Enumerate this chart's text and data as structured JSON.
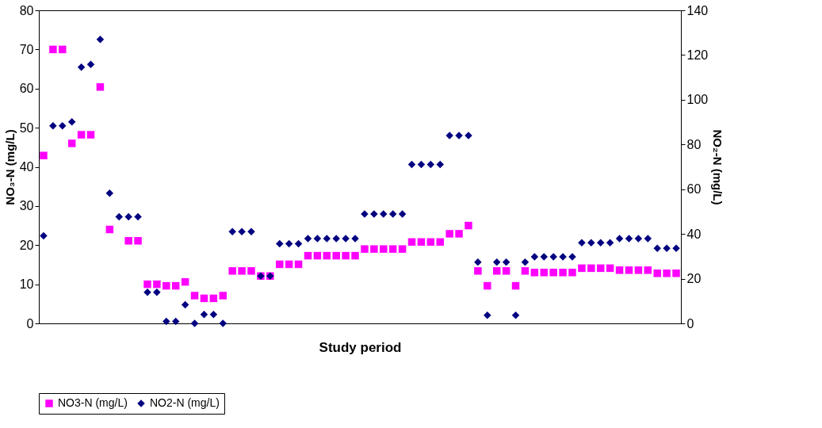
{
  "chart_data": {
    "type": "scatter",
    "xlabel": "Study period",
    "ylabel": "NO₃-N (mg/L)",
    "y2label": "NO₂-N (mg/L)",
    "categories": [
      null,
      null,
      null,
      null,
      null,
      null,
      null,
      null,
      null,
      null,
      null,
      null,
      null,
      null,
      null,
      null,
      null,
      null,
      null,
      null,
      null,
      null,
      null,
      null,
      null,
      null,
      null,
      null,
      null,
      null,
      null,
      null,
      null,
      null,
      null,
      null,
      null,
      null,
      null,
      null,
      null,
      null,
      null,
      null,
      null,
      null,
      null,
      null,
      null,
      null,
      null,
      null,
      null,
      null,
      null,
      null,
      null,
      null,
      null,
      null,
      null,
      null,
      null,
      null,
      null,
      null,
      null,
      null
    ],
    "ylim": [
      0,
      80
    ],
    "yticks": [
      0,
      10,
      20,
      30,
      40,
      50,
      60,
      70,
      80
    ],
    "y2lim": [
      0,
      140
    ],
    "y2ticks": [
      0,
      20,
      40,
      60,
      80,
      100,
      120,
      140
    ],
    "grid": false,
    "legend": "bottom",
    "series": [
      {
        "name": "NO3-N (mg/L)",
        "color": "#ff00ff",
        "marker": "square",
        "values": [
          42.9,
          70,
          70,
          46,
          48.2,
          48.2,
          60.4,
          24,
          null,
          21.1,
          21.1,
          10,
          10,
          9.6,
          9.6,
          10.6,
          7.1,
          6.4,
          6.4,
          7.1,
          13.4,
          13.4,
          13.4,
          12.1,
          12.1,
          15.1,
          15.1,
          15.1,
          17.3,
          17.3,
          17.3,
          17.3,
          17.3,
          17.3,
          19,
          19,
          19,
          19,
          19,
          20.8,
          20.8,
          20.8,
          20.8,
          22.9,
          22.9,
          25,
          13.4,
          9.6,
          13.4,
          13.4,
          9.6,
          13.4,
          13,
          13,
          13,
          13,
          13,
          14.1,
          14.1,
          14.1,
          14.1,
          13.6,
          13.6,
          13.6,
          13.6,
          12.8,
          12.8,
          12.8
        ]
      },
      {
        "name": "NO2-N (mg/L)",
        "color": "#000080",
        "marker": "diamond",
        "axis": "y2",
        "values": [
          39.2,
          88.3,
          88.3,
          90.1,
          114.6,
          115.8,
          127,
          58.2,
          47.7,
          47.7,
          47.7,
          13.9,
          13.9,
          0.9,
          0.9,
          8.3,
          0,
          4,
          4,
          0,
          41,
          41,
          41,
          21.2,
          21.2,
          35.6,
          35.6,
          35.6,
          37.9,
          37.9,
          37.9,
          37.9,
          37.9,
          37.9,
          48.9,
          48.9,
          48.9,
          48.9,
          48.9,
          71.1,
          71.1,
          71.1,
          71.1,
          84,
          84,
          84,
          27.4,
          3.6,
          27.4,
          27.4,
          3.6,
          27.4,
          29.8,
          29.8,
          29.8,
          29.8,
          29.8,
          36.1,
          36.1,
          36.1,
          36.1,
          37.9,
          37.9,
          37.9,
          37.9,
          33.6,
          33.6,
          33.6
        ]
      }
    ]
  }
}
